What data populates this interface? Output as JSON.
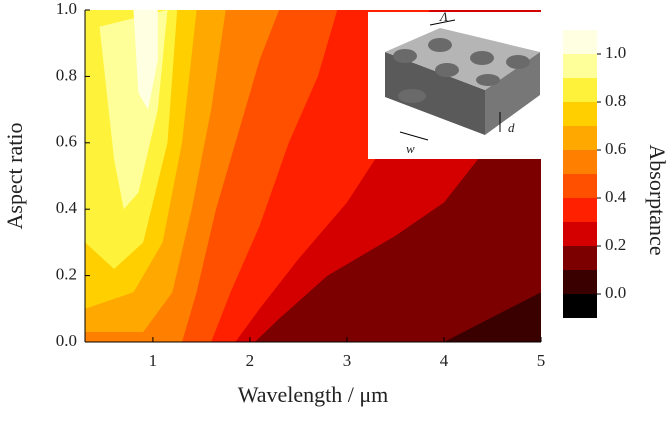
{
  "chart_data": {
    "type": "contour",
    "x_label": "Wavelength / μm",
    "y_label": "Aspect ratio",
    "colorbar_label": "Absorptance",
    "xlim": [
      0.3,
      5
    ],
    "ylim": [
      0,
      1
    ],
    "xticks": [
      1,
      2,
      3,
      4,
      5
    ],
    "yticks": [
      {
        "value": 0,
        "label": "0.0"
      },
      {
        "value": 0.2,
        "label": "0.2"
      },
      {
        "value": 0.4,
        "label": "0.4"
      },
      {
        "value": 0.6,
        "label": "0.6"
      },
      {
        "value": 0.8,
        "label": "0.8"
      },
      {
        "value": 1,
        "label": "1.0"
      }
    ],
    "colorbar": {
      "levels": [
        -0.1,
        0,
        0.1,
        0.2,
        0.3,
        0.4,
        0.5,
        0.6,
        0.7,
        0.8,
        0.9,
        1.0,
        1.1
      ],
      "colors": [
        "#000000",
        "#3a0000",
        "#7d0000",
        "#d40000",
        "#ff2000",
        "#ff5000",
        "#ff8000",
        "#ffa800",
        "#ffcf00",
        "#fff23a",
        "#ffff9a",
        "#ffffe2"
      ],
      "ticks": [
        {
          "value": 0,
          "label": "0.0"
        },
        {
          "value": 0.2,
          "label": "0.2"
        },
        {
          "value": 0.4,
          "label": "0.4"
        },
        {
          "value": 0.6,
          "label": "0.6"
        },
        {
          "value": 0.8,
          "label": "0.8"
        },
        {
          "value": 1.0,
          "label": "1.0"
        }
      ]
    },
    "contours": [
      {
        "level": 0,
        "x": [
          0.3,
          5,
          5,
          0.3
        ],
        "y": [
          0,
          0,
          1,
          1
        ]
      },
      {
        "level": 0.1,
        "x": [
          0.3,
          4.0,
          5,
          5,
          0.3
        ],
        "y": [
          0,
          0,
          0.15,
          1,
          1
        ]
      },
      {
        "level": 0.2,
        "x": [
          0.3,
          2.05,
          2.3,
          2.8,
          3.5,
          4.0,
          4.35,
          4.7,
          5,
          5,
          0.3
        ],
        "y": [
          0,
          0,
          0.07,
          0.2,
          0.32,
          0.42,
          0.55,
          0.72,
          0.85,
          1,
          1
        ]
      },
      {
        "level": 0.3,
        "x": [
          0.3,
          1.85,
          2.1,
          2.5,
          3.0,
          3.4,
          3.7,
          3.85,
          0.3
        ],
        "y": [
          0,
          0,
          0.1,
          0.25,
          0.42,
          0.6,
          0.8,
          1,
          1
        ]
      },
      {
        "level": 0.4,
        "x": [
          0.3,
          1.6,
          1.8,
          2.1,
          2.4,
          2.7,
          2.9,
          0.3
        ],
        "y": [
          0,
          0,
          0.15,
          0.35,
          0.6,
          0.8,
          1,
          1
        ]
      },
      {
        "level": 0.5,
        "x": [
          0.3,
          1.3,
          1.45,
          1.65,
          1.9,
          2.1,
          2.3,
          0.3
        ],
        "y": [
          0,
          0,
          0.15,
          0.4,
          0.65,
          0.85,
          1,
          1
        ]
      },
      {
        "level": 0.6,
        "x": [
          0.3,
          0.9,
          1.2,
          1.4,
          1.6,
          1.75,
          0.3
        ],
        "y": [
          0.03,
          0.03,
          0.15,
          0.4,
          0.7,
          1,
          1
        ]
      },
      {
        "level": 0.7,
        "x": [
          0.3,
          0.8,
          1.1,
          1.3,
          1.45,
          0.3
        ],
        "y": [
          0.1,
          0.15,
          0.3,
          0.6,
          1,
          1
        ]
      },
      {
        "level": 0.8,
        "x": [
          0.3,
          0.6,
          0.9,
          1.15,
          1.25,
          0.3
        ],
        "y": [
          0.3,
          0.22,
          0.3,
          0.6,
          1,
          1
        ]
      },
      {
        "level": 0.9,
        "x": [
          0.45,
          0.6,
          0.7,
          0.85,
          1.05,
          1.15
        ],
        "y": [
          0.95,
          0.55,
          0.4,
          0.45,
          0.7,
          1
        ]
      },
      {
        "level": 1.0,
        "x": [
          0.8,
          0.85,
          0.95,
          1.05,
          1.05
        ],
        "y": [
          1,
          0.75,
          0.7,
          0.85,
          1
        ]
      }
    ],
    "inset_labels": [
      "Λ",
      "d",
      "w"
    ]
  }
}
